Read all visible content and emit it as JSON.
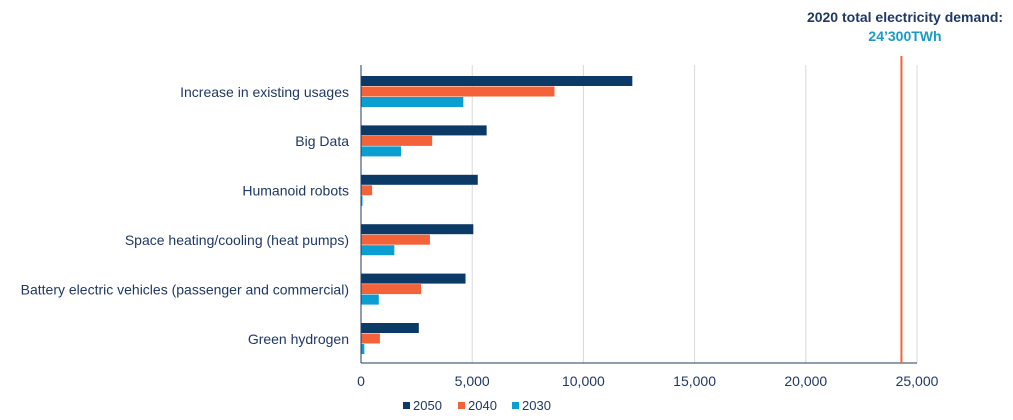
{
  "chart_data": {
    "type": "bar",
    "orientation": "horizontal",
    "categories": [
      "Increase in existing usages",
      "Big Data",
      "Humanoid robots",
      "Space heating/cooling (heat pumps)",
      "Battery electric vehicles (passenger and commercial)",
      "Green hydrogen"
    ],
    "series": [
      {
        "name": "2050",
        "color": "#0b3a66",
        "values": [
          12200,
          5650,
          5250,
          5050,
          4700,
          2600
        ]
      },
      {
        "name": "2040",
        "color": "#f4623a",
        "values": [
          8700,
          3200,
          500,
          3100,
          2700,
          850
        ]
      },
      {
        "name": "2030",
        "color": "#0d9ed1",
        "values": [
          4600,
          1800,
          50,
          1500,
          800,
          150
        ]
      }
    ],
    "xlim": [
      0,
      25000
    ],
    "xticks": [
      0,
      5000,
      10000,
      15000,
      20000,
      25000
    ],
    "xtick_labels": [
      "0",
      "5,000",
      "10,000",
      "15,000",
      "20,000",
      "25,000"
    ],
    "grid": "vertical",
    "legend_position": "bottom",
    "reference_line": {
      "value": 24300,
      "color": "#f4623a",
      "label": "2020 total electricity demand:",
      "value_label": "24’300TWh"
    }
  }
}
